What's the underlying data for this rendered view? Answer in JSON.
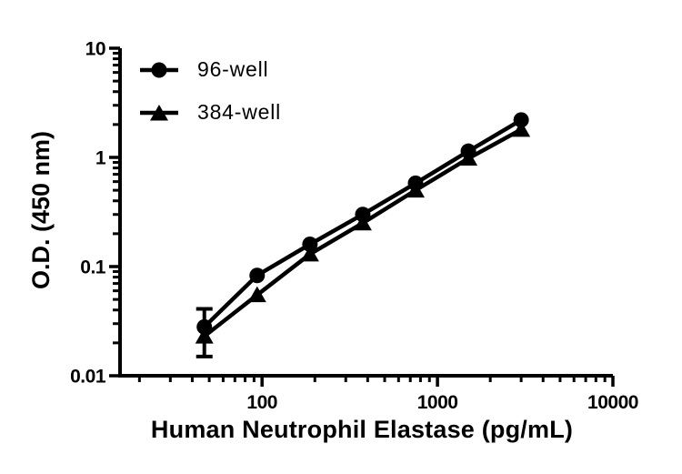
{
  "figure": {
    "background": "#ffffff",
    "ink_color": "#000000"
  },
  "chart_data": {
    "type": "line",
    "title": "",
    "xlabel": "Human Neutrophil Elastase (pg/mL)",
    "ylabel": "O.D. (450 nm)",
    "x_scale": "log",
    "y_scale": "log",
    "xlim": [
      15.5,
      10000
    ],
    "ylim": [
      0.01,
      10
    ],
    "grid": false,
    "legend_position": "top-left-inside",
    "x_ticks": [
      {
        "value": 100,
        "label": "100"
      },
      {
        "value": 1000,
        "label": "1000"
      },
      {
        "value": 10000,
        "label": "10000"
      }
    ],
    "y_ticks": [
      {
        "value": 0.01,
        "label": "0.01"
      },
      {
        "value": 0.1,
        "label": "0.1"
      },
      {
        "value": 1,
        "label": "1"
      },
      {
        "value": 10,
        "label": "10"
      }
    ],
    "series": [
      {
        "name": "96-well",
        "marker": "circle",
        "color": "#000000",
        "x": [
          46.88,
          93.75,
          187.5,
          375,
          750,
          1500,
          3000
        ],
        "y": [
          0.028,
          0.083,
          0.16,
          0.3,
          0.58,
          1.14,
          2.2
        ]
      },
      {
        "name": "384-well",
        "marker": "triangle-up",
        "color": "#000000",
        "x": [
          46.88,
          93.75,
          187.5,
          375,
          750,
          1500,
          3000
        ],
        "y": [
          0.023,
          0.055,
          0.13,
          0.25,
          0.5,
          0.98,
          1.8
        ]
      }
    ],
    "error_bars": [
      {
        "x": 46.88,
        "low": 0.015,
        "high": 0.041
      }
    ]
  }
}
